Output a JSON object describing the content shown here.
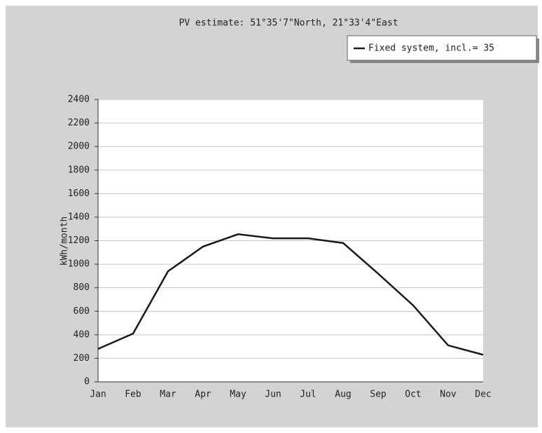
{
  "chart_data": {
    "type": "line",
    "title": "PV estimate:  51°35'7\"North, 21°33'4\"East",
    "y_label": "kWh/month",
    "categories": [
      "Jan",
      "Feb",
      "Mar",
      "Apr",
      "May",
      "Jun",
      "Jul",
      "Aug",
      "Sep",
      "Oct",
      "Nov",
      "Dec"
    ],
    "series": [
      {
        "name": "Fixed system, incl.= 35",
        "color": "#1a1a1a",
        "values": [
          280,
          410,
          940,
          1150,
          1255,
          1220,
          1220,
          1180,
          920,
          650,
          310,
          230
        ]
      }
    ],
    "ylim": [
      0,
      2400
    ],
    "yticks": [
      0,
      200,
      400,
      600,
      800,
      1000,
      1200,
      1400,
      1600,
      1800,
      2000,
      2200,
      2400
    ],
    "grid": true,
    "legend": "top-right"
  }
}
